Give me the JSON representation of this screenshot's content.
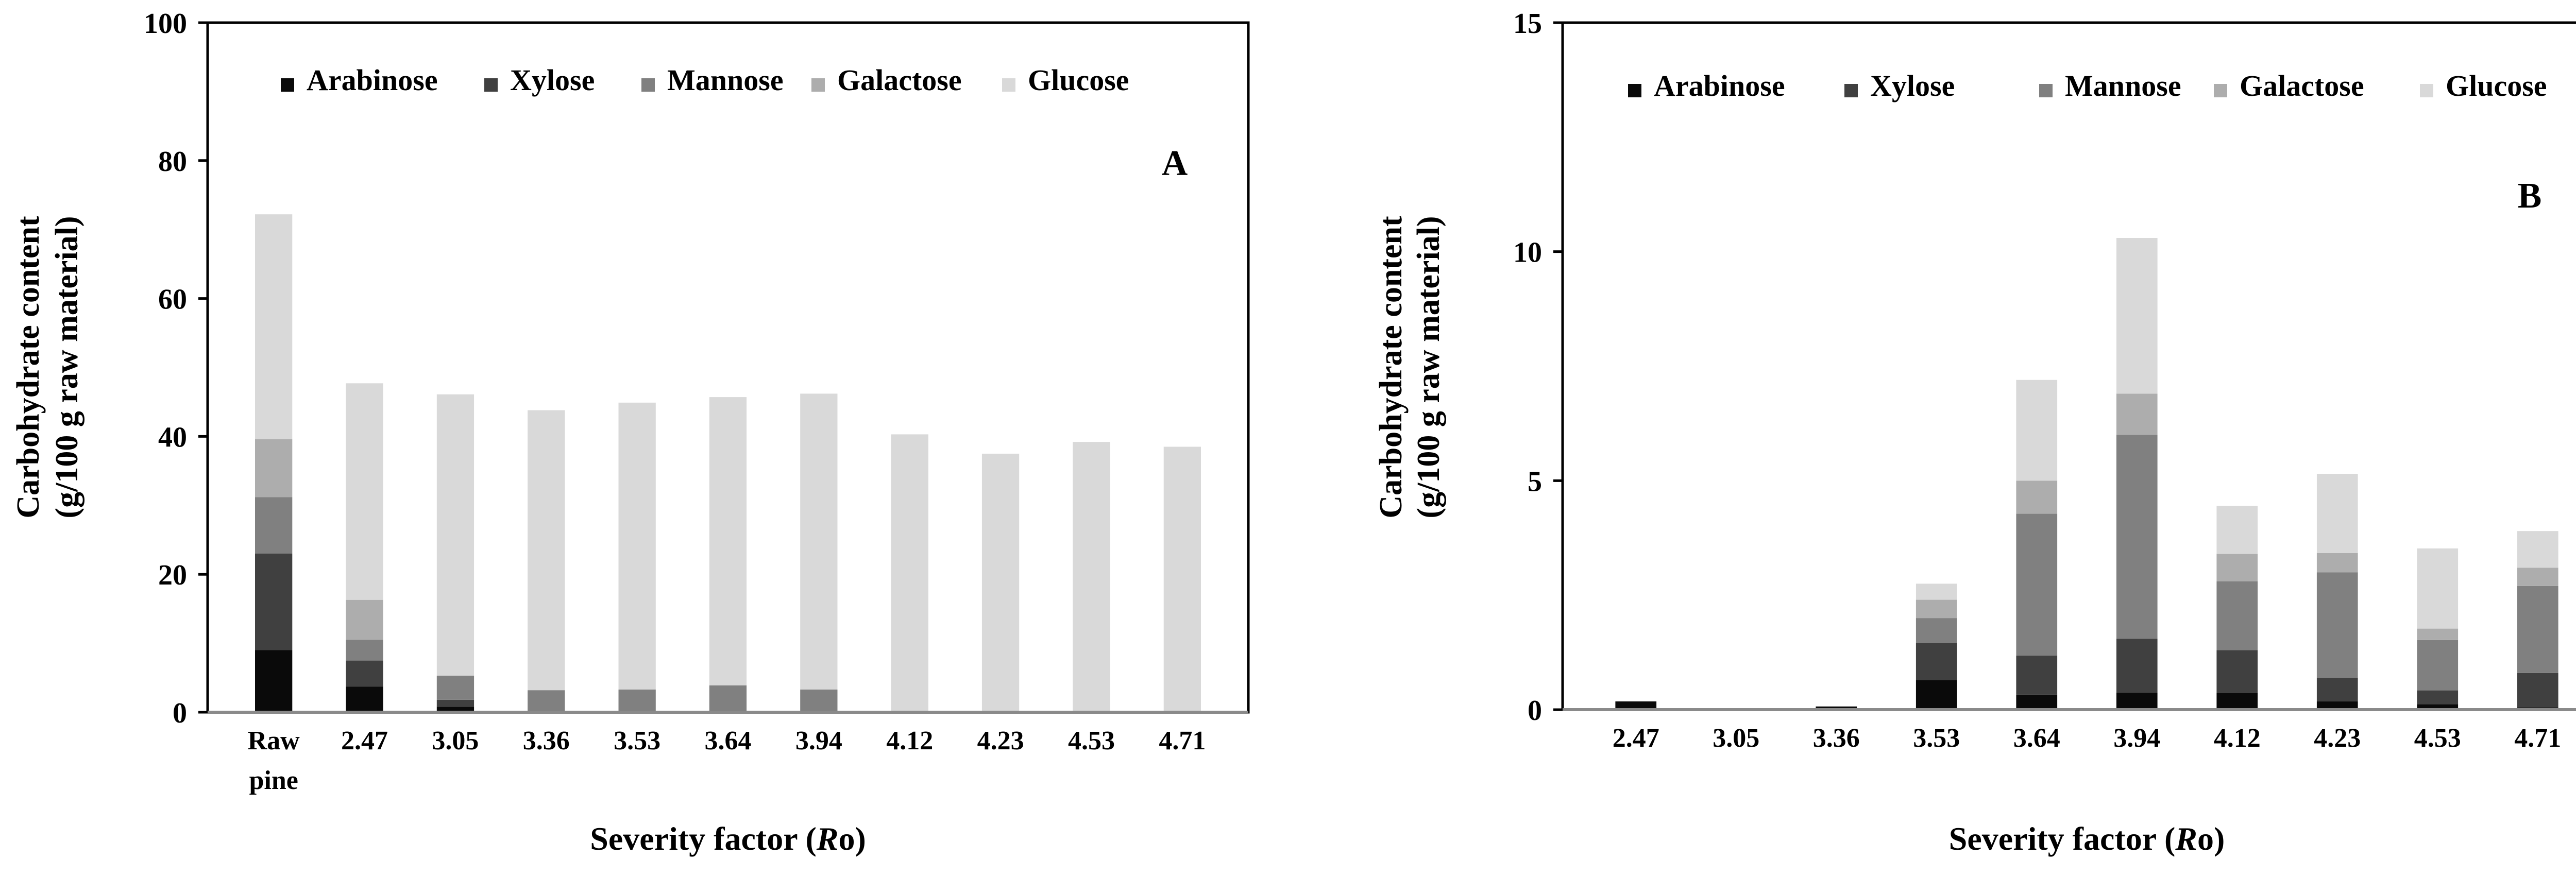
{
  "colors": {
    "Arabinose": "#0a0a0a",
    "Xylose": "#404040",
    "Mannose": "#808080",
    "Galactose": "#adadad",
    "Glucose": "#d9d9d9"
  },
  "chart_data": [
    {
      "type": "bar",
      "stacked": true,
      "panel_label": "A",
      "title": "",
      "xlabel": "Severity factor (Ro)",
      "xlabel_parts": [
        "Severity factor (",
        "R",
        "o)"
      ],
      "ylabel": "Carbohydrate content (g/100 g raw material)",
      "ylabel_lines": [
        "Carbohydrate content",
        "(g/100 g raw material)"
      ],
      "ylim": [
        0,
        100
      ],
      "yticks": [
        "0",
        "20",
        "40",
        "60",
        "80",
        "100"
      ],
      "grid": false,
      "legend_position": "top",
      "categories": [
        "Raw pine",
        "2.47",
        "3.05",
        "3.36",
        "3.53",
        "3.64",
        "3.94",
        "4.12",
        "4.23",
        "4.53",
        "4.71"
      ],
      "category_lines": [
        [
          "Raw",
          "pine"
        ],
        [
          "2.47"
        ],
        [
          "3.05"
        ],
        [
          "3.36"
        ],
        [
          "3.53"
        ],
        [
          "3.64"
        ],
        [
          "3.94"
        ],
        [
          "4.12"
        ],
        [
          "4.23"
        ],
        [
          "4.53"
        ],
        [
          "4.71"
        ]
      ],
      "series": [
        {
          "name": "Arabinose",
          "values": [
            9.0,
            3.7,
            0.8,
            0,
            0,
            0,
            0,
            0,
            0,
            0,
            0
          ]
        },
        {
          "name": "Xylose",
          "values": [
            14.0,
            3.8,
            1.0,
            0,
            0,
            0,
            0,
            0,
            0,
            0,
            0
          ]
        },
        {
          "name": "Mannose",
          "values": [
            8.2,
            3.0,
            3.5,
            3.2,
            3.3,
            3.9,
            3.3,
            0,
            0,
            0,
            0
          ]
        },
        {
          "name": "Galactose",
          "values": [
            8.4,
            5.8,
            0,
            0,
            0,
            0,
            0,
            0,
            0,
            0,
            0
          ]
        },
        {
          "name": "Glucose",
          "values": [
            32.6,
            31.4,
            40.8,
            40.6,
            41.6,
            41.8,
            42.9,
            40.3,
            37.5,
            39.2,
            38.5
          ]
        }
      ]
    },
    {
      "type": "bar",
      "stacked": true,
      "panel_label": "B",
      "title": "",
      "xlabel": "Severity factor (Ro)",
      "xlabel_parts": [
        "Severity factor (",
        "R",
        "o)"
      ],
      "ylabel": "Carbohydrate content (g/100 g raw material)",
      "ylabel_lines": [
        "Carbohydrate content",
        "(g/100 g raw material)"
      ],
      "ylim": [
        0,
        15
      ],
      "yticks": [
        "0",
        "5",
        "10",
        "15"
      ],
      "grid": false,
      "legend_position": "top",
      "categories": [
        "2.47",
        "3.05",
        "3.36",
        "3.53",
        "3.64",
        "3.94",
        "4.12",
        "4.23",
        "4.53",
        "4.71"
      ],
      "category_lines": [
        [
          "2.47"
        ],
        [
          "3.05"
        ],
        [
          "3.36"
        ],
        [
          "3.53"
        ],
        [
          "3.64"
        ],
        [
          "3.94"
        ],
        [
          "4.12"
        ],
        [
          "4.23"
        ],
        [
          "4.53"
        ],
        [
          "4.71"
        ]
      ],
      "series": [
        {
          "name": "Arabinose",
          "values": [
            0.18,
            0.03,
            0.07,
            0.65,
            0.33,
            0.37,
            0.36,
            0.18,
            0.12,
            0.05
          ]
        },
        {
          "name": "Xylose",
          "values": [
            0,
            0,
            0,
            0.8,
            0.85,
            1.18,
            0.94,
            0.52,
            0.3,
            0.75
          ]
        },
        {
          "name": "Mannose",
          "values": [
            0,
            0,
            0,
            0.55,
            3.1,
            4.45,
            1.5,
            2.3,
            1.1,
            1.9
          ]
        },
        {
          "name": "Galactose",
          "values": [
            0,
            0,
            0,
            0.4,
            0.72,
            0.9,
            0.6,
            0.42,
            0.25,
            0.4
          ]
        },
        {
          "name": "Glucose",
          "values": [
            0,
            0,
            0,
            0.35,
            2.2,
            3.4,
            1.05,
            1.73,
            1.75,
            0.8
          ]
        }
      ]
    }
  ]
}
